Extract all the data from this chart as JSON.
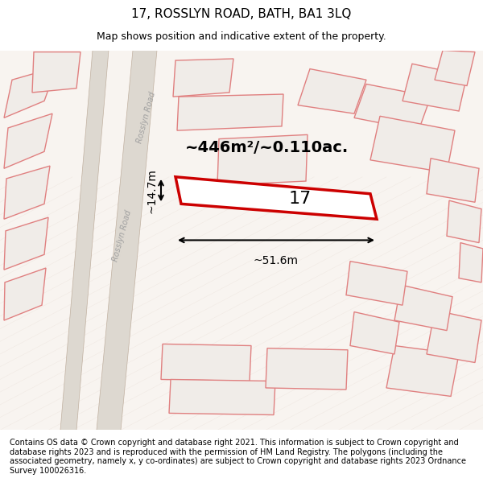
{
  "title": "17, ROSSLYN ROAD, BATH, BA1 3LQ",
  "subtitle": "Map shows position and indicative extent of the property.",
  "area_text": "~446m²/~0.110ac.",
  "property_number": "17",
  "width_label": "~51.6m",
  "height_label": "~14.7m",
  "road_label": "Rosslyn Road",
  "copyright_text": "Contains OS data © Crown copyright and database right 2021. This information is subject to Crown copyright and database rights 2023 and is reproduced with the permission of HM Land Registry. The polygons (including the associated geometry, namely x, y co-ordinates) are subject to Crown copyright and database rights 2023 Ordnance Survey 100026316.",
  "bg_color": "#f5f0ec",
  "map_bg": "#f8f5f2",
  "road_fill": "#e8e0d8",
  "property_outline_color": "#cc0000",
  "neighbor_outline_color": "#e08080",
  "neighbor_fill": "#e8e0d8",
  "title_fontsize": 11,
  "subtitle_fontsize": 9,
  "label_fontsize": 10,
  "copyright_fontsize": 7
}
